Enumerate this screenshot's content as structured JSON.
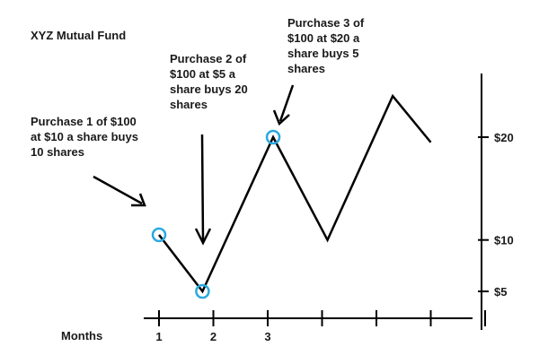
{
  "chart_data": {
    "type": "line",
    "title": "XYZ Mutual Fund",
    "xlabel": "Months",
    "ylabel": "",
    "x_ticks": [
      "1",
      "2",
      "3",
      "",
      "",
      "",
      ""
    ],
    "y_ticks": [
      "$5",
      "$10",
      "$20"
    ],
    "series": [
      {
        "points": [
          {
            "x": 1.0,
            "y": 10.5
          },
          {
            "x": 1.8,
            "y": 5.0
          },
          {
            "x": 3.1,
            "y": 20.0
          },
          {
            "x": 4.1,
            "y": 10.0
          },
          {
            "x": 5.3,
            "y": 24.0
          },
          {
            "x": 6.0,
            "y": 19.5
          }
        ]
      }
    ],
    "purchases": [
      {
        "x": 1.0,
        "y": 10.5,
        "label": [
          "Purchase 1 of $100",
          "at $10 a share buys",
          "10 shares"
        ]
      },
      {
        "x": 1.8,
        "y": 5.0,
        "label": [
          "Purchase 2 of",
          "$100 at $5 a",
          "share buys 20",
          "shares"
        ]
      },
      {
        "x": 3.1,
        "y": 20.0,
        "label": [
          "Purchase 3 of",
          "$100 at $20 a",
          "share buys 5",
          "shares"
        ]
      }
    ],
    "colors": {
      "line": "#000000",
      "marker": "#29a9e0"
    }
  }
}
